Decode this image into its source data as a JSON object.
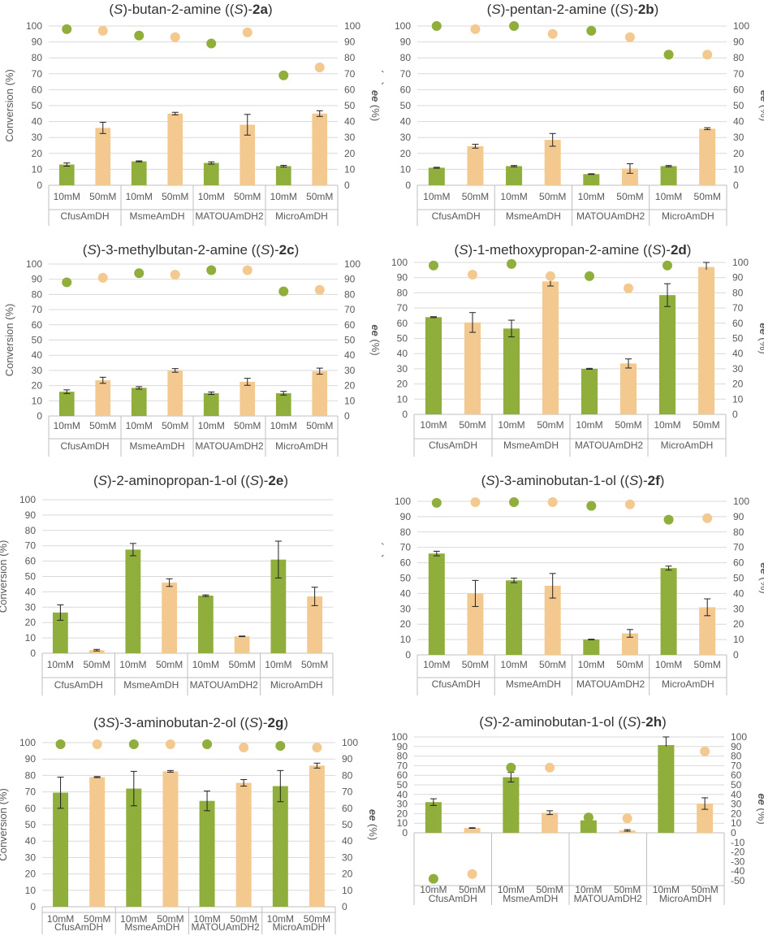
{
  "colors": {
    "green": "#8fae3b",
    "tan": "#f4c98f",
    "grid": "#d9d9d9",
    "axis": "#bfbfbf",
    "text": "#595959"
  },
  "chart_data": [
    {
      "type": "bar",
      "id": "2a",
      "title": {
        "pre": "(",
        "s1": "S",
        "mid": ")-butan-2-amine ((",
        "s2": "S",
        "mid2": ")-",
        "bold": "2a",
        "post": ")"
      },
      "ylabel": "Conversion (%)",
      "y2label_italic": "ee",
      "y2label_rest": " (%)",
      "ylim": [
        0,
        100
      ],
      "y2lim": [
        0,
        100
      ],
      "ticks_left": [
        0,
        10,
        20,
        30,
        40,
        50,
        60,
        70,
        80,
        90,
        100
      ],
      "ticks_right": [
        0,
        10,
        20,
        30,
        40,
        50,
        60,
        70,
        80,
        90,
        100
      ],
      "groups": [
        "CfusAmDH",
        "MsmeAmDH",
        "MATOUAmDH2",
        "MicroAmDH"
      ],
      "sublabels": [
        "10mM",
        "50mM"
      ],
      "conversion": [
        13,
        36,
        15,
        45,
        14,
        38,
        12,
        45
      ],
      "error": [
        1,
        3.5,
        0.3,
        0.8,
        0.7,
        6.5,
        0.5,
        1.8
      ],
      "ee": [
        98,
        97,
        94,
        93,
        89,
        96,
        69,
        74
      ]
    },
    {
      "type": "bar",
      "id": "2b",
      "title": {
        "pre": "(",
        "s1": "S",
        "mid": ")-pentan-2-amine ((",
        "s2": "S",
        "mid2": ")-",
        "bold": "2b",
        "post": ")"
      },
      "ylabel": "Conversion (%)",
      "y2label_italic": "ee",
      "y2label_rest": " (%)",
      "ylim": [
        0,
        100
      ],
      "y2lim": [
        0,
        100
      ],
      "ticks_left": [
        0,
        10,
        20,
        30,
        40,
        50,
        60,
        70,
        80,
        90,
        100
      ],
      "ticks_right": [
        0,
        10,
        20,
        30,
        40,
        50,
        60,
        70,
        80,
        90,
        100
      ],
      "groups": [
        "CfusAmDH",
        "MsmeAmDH",
        "MATOUAmDH2",
        "MicroAmDH"
      ],
      "sublabels": [
        "10mM",
        "50mM"
      ],
      "conversion": [
        11,
        24.5,
        12,
        28.5,
        7,
        10.5,
        12,
        35.5
      ],
      "error": [
        0.3,
        1.2,
        0.4,
        4,
        0.2,
        3,
        0.4,
        0.6
      ],
      "ee": [
        100,
        98,
        100,
        95,
        97,
        93,
        82,
        82
      ]
    },
    {
      "type": "bar",
      "id": "2c",
      "title": {
        "pre": "(",
        "s1": "S",
        "mid": ")-3-methylbutan-2-amine ((",
        "s2": "S",
        "mid2": ")-",
        "bold": "2c",
        "post": ")"
      },
      "ylabel": "Conversion (%)",
      "y2label_italic": "ee",
      "y2label_rest": " (%)",
      "ylim": [
        0,
        100
      ],
      "y2lim": [
        0,
        100
      ],
      "ticks_left": [
        0,
        10,
        20,
        30,
        40,
        50,
        60,
        70,
        80,
        90,
        100
      ],
      "ticks_right": [
        0,
        10,
        20,
        30,
        40,
        50,
        60,
        70,
        80,
        90,
        100
      ],
      "groups": [
        "CfusAmDH",
        "MsmeAmDH",
        "MATOUAmDH2",
        "MicroAmDH"
      ],
      "sublabels": [
        "10mM",
        "50mM"
      ],
      "conversion": [
        16,
        23.5,
        18.5,
        30,
        15,
        22.5,
        15,
        29.5
      ],
      "error": [
        1.2,
        2,
        0.8,
        1.2,
        0.8,
        2.3,
        1.2,
        2
      ],
      "ee": [
        88,
        91,
        94,
        93,
        96,
        96,
        82,
        83
      ]
    },
    {
      "type": "bar",
      "id": "2d",
      "title": {
        "pre": "(",
        "s1": "S",
        "mid": ")-1-methoxypropan-2-amine ((",
        "s2": "S",
        "mid2": ")-",
        "bold": "2d",
        "post": ")"
      },
      "ylabel": "Conversion (%)",
      "y2label_italic": "ee",
      "y2label_rest": " (%)",
      "ylim": [
        0,
        100
      ],
      "y2lim": [
        0,
        100
      ],
      "ticks_left": [
        0,
        10,
        20,
        30,
        40,
        50,
        60,
        70,
        80,
        90,
        100
      ],
      "ticks_right": [
        0,
        10,
        20,
        30,
        40,
        50,
        60,
        70,
        80,
        90,
        100
      ],
      "groups": [
        "CfusAmDH",
        "MsmeAmDH",
        "MATOUAmDH2",
        "MicroAmDH"
      ],
      "sublabels": [
        "10mM",
        "50mM"
      ],
      "conversion": [
        64,
        60.5,
        56.5,
        87.5,
        30,
        33.5,
        78.5,
        97
      ],
      "error": [
        0.3,
        6.5,
        5.5,
        3,
        0.3,
        3,
        7.5,
        3
      ],
      "ee": [
        98,
        92,
        99,
        91,
        91,
        83,
        98,
        92
      ]
    },
    {
      "type": "bar",
      "id": "2e",
      "title": {
        "pre": "(",
        "s1": "S",
        "mid": ")-2-aminopropan-1-ol ((",
        "s2": "S",
        "mid2": ")-",
        "bold": "2e",
        "post": ")"
      },
      "ylabel": "Conversion (%)",
      "y2label_italic": "",
      "y2label_rest": "",
      "ylim": [
        0,
        100
      ],
      "y2lim": [
        0,
        100
      ],
      "ticks_left": [
        0,
        10,
        20,
        30,
        40,
        50,
        60,
        70,
        80,
        90,
        100
      ],
      "ticks_right": [],
      "groups": [
        "CfusAmDH",
        "MsmeAmDH",
        "MATOUAmDH2",
        "MicroAmDH"
      ],
      "sublabels": [
        "10mM",
        "50mM"
      ],
      "conversion": [
        26.5,
        2,
        67.5,
        46,
        37.5,
        11,
        61,
        37
      ],
      "error": [
        5,
        0.5,
        4,
        2.5,
        0.5,
        0.2,
        12,
        6
      ],
      "ee": []
    },
    {
      "type": "bar",
      "id": "2f",
      "title": {
        "pre": "(",
        "s1": "S",
        "mid": ")-3-aminobutan-1-ol ((",
        "s2": "S",
        "mid2": ")-",
        "bold": "2f",
        "post": ")"
      },
      "ylabel": "Conversion (%)",
      "y2label_italic": "ee",
      "y2label_rest": " (%)",
      "ylim": [
        0,
        100
      ],
      "y2lim": [
        0,
        100
      ],
      "ticks_left": [
        0,
        10,
        20,
        30,
        40,
        50,
        60,
        70,
        80,
        90,
        100
      ],
      "ticks_right": [
        0,
        10,
        20,
        30,
        40,
        50,
        60,
        70,
        80,
        90,
        100
      ],
      "groups": [
        "CfusAmDH",
        "MsmeAmDH",
        "MATOUAmDH2",
        "MicroAmDH"
      ],
      "sublabels": [
        "10mM",
        "50mM"
      ],
      "conversion": [
        66,
        40,
        48.5,
        45,
        10,
        14,
        56.5,
        31
      ],
      "error": [
        1.5,
        8.5,
        1.5,
        8,
        0.2,
        2.5,
        1.3,
        5.5
      ],
      "ee": [
        99,
        99.5,
        99.5,
        99.5,
        97,
        98,
        88,
        89
      ]
    },
    {
      "type": "bar",
      "id": "2g",
      "title": {
        "pre": "(3",
        "s1": "S",
        "mid": ")-3-aminobutan-2-ol ((",
        "s2": "S",
        "mid2": ")-",
        "bold": "2g",
        "post": ")"
      },
      "ylabel": "Conversion (%)",
      "y2label_italic": "ee",
      "y2label_rest": " (%)",
      "ylim": [
        0,
        100
      ],
      "y2lim": [
        0,
        100
      ],
      "ticks_left": [
        0,
        10,
        20,
        30,
        40,
        50,
        60,
        70,
        80,
        90,
        100
      ],
      "ticks_right": [
        0,
        10,
        20,
        30,
        40,
        50,
        60,
        70,
        80,
        90,
        100
      ],
      "groups": [
        "CfusAmDH",
        "MsmeAmDH",
        "MATOUAmDH2",
        "MicroAmDH"
      ],
      "sublabels": [
        "10mM",
        "50mM"
      ],
      "conversion": [
        69.5,
        79,
        72,
        82.5,
        64.5,
        75.5,
        73.5,
        86
      ],
      "error": [
        9.5,
        0.3,
        10.5,
        0.5,
        6,
        2,
        9.5,
        1.5
      ],
      "ee": [
        99,
        99,
        99,
        99,
        99,
        97,
        98,
        97
      ]
    },
    {
      "type": "bar",
      "id": "2h",
      "title": {
        "pre": "(",
        "s1": "S",
        "mid": ")-2-aminobutan-1-ol ((",
        "s2": "S",
        "mid2": ")-",
        "bold": "2h",
        "post": ")"
      },
      "ylabel": "Conversion (%)",
      "y2label_italic": "ee",
      "y2label_rest": " (%)",
      "ylim": [
        -50,
        100
      ],
      "y2lim": [
        -50,
        100
      ],
      "ticks_left": [
        0,
        10,
        20,
        30,
        40,
        50,
        60,
        70,
        80,
        90,
        100
      ],
      "ticks_right": [
        -50,
        -40,
        -30,
        -20,
        -10,
        0,
        10,
        20,
        30,
        40,
        50,
        60,
        70,
        80,
        90,
        100
      ],
      "groups": [
        "CfusAmDH",
        "MsmeAmDH",
        "MATOUAmDH2",
        "MicroAmDH"
      ],
      "sublabels": [
        "10mM",
        "50mM"
      ],
      "conversion": [
        32,
        5,
        58,
        21,
        13,
        2.5,
        91.5,
        30.5
      ],
      "error": [
        3.5,
        0.3,
        5,
        2,
        0.3,
        0.8,
        8.5,
        6
      ],
      "ee": [
        -48,
        -43,
        68,
        68,
        16,
        15,
        85,
        85
      ]
    }
  ]
}
